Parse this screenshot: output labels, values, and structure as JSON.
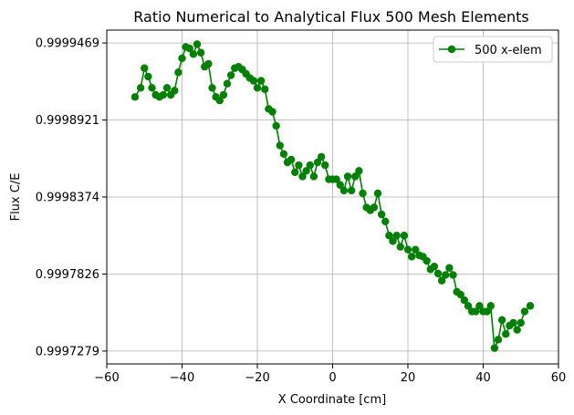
{
  "chart_data": {
    "type": "line",
    "title": "Ratio Numerical to Analytical Flux 500 Mesh Elements",
    "xlabel": "X Coordinate [cm]",
    "ylabel": "Flux C/E",
    "xlim": [
      -60,
      60
    ],
    "ylim": [
      0.99971875,
      0.99995605
    ],
    "xticks": [
      -60,
      -40,
      -20,
      0,
      20,
      40,
      60
    ],
    "xtick_labels": [
      "−60",
      "−40",
      "−20",
      "0",
      "20",
      "40",
      "60"
    ],
    "yticks": [
      0.9997279,
      0.9997826,
      0.9998374,
      0.9998921,
      0.9999469
    ],
    "ytick_labels": [
      "0.9997279",
      "0.9997826",
      "0.9998374",
      "0.9998921",
      "0.9999469"
    ],
    "grid": true,
    "legend_position": "top-right",
    "series": [
      {
        "name": "500 x-elem",
        "color": "#008000",
        "marker": "circle",
        "x": [
          -52.5,
          -51,
          -50,
          -49,
          -48,
          -47,
          -46,
          -45,
          -44,
          -43,
          -42,
          -41,
          -40,
          -39,
          -38,
          -37,
          -36,
          -35,
          -34,
          -33,
          -32,
          -31,
          -30,
          -29,
          -28,
          -27,
          -26,
          -25,
          -24,
          -23,
          -22,
          -21,
          -20,
          -19,
          -18,
          -17,
          -16,
          -15,
          -14,
          -13,
          -12,
          -11,
          -10,
          -9,
          -8,
          -7,
          -6,
          -5,
          -4,
          -3,
          -2,
          -1,
          0,
          1,
          2,
          3,
          4,
          5,
          6,
          7,
          8,
          9,
          10,
          11,
          12,
          13,
          14,
          15,
          16,
          17,
          18,
          19,
          20,
          21,
          22,
          23,
          24,
          25,
          26,
          27,
          28,
          29,
          30,
          31,
          32,
          33,
          34,
          35,
          36,
          37,
          38,
          39,
          40,
          41,
          42,
          43,
          44,
          45,
          46,
          47,
          48,
          49,
          50,
          51,
          52.5
        ],
        "y": [
          0.9999085,
          0.999915,
          0.999929,
          0.999923,
          0.999915,
          0.99991,
          0.9999085,
          0.99991,
          0.999915,
          0.99991,
          0.999913,
          0.999926,
          0.999936,
          0.999944,
          0.999943,
          0.999939,
          0.999946,
          0.99994,
          0.99993,
          0.999932,
          0.999915,
          0.9999085,
          0.999906,
          0.99991,
          0.999918,
          0.999924,
          0.999929,
          0.99993,
          0.999928,
          0.999925,
          0.999922,
          0.99992,
          0.999915,
          0.99992,
          0.999914,
          0.9999,
          0.999898,
          0.999888,
          0.999874,
          0.999868,
          0.999862,
          0.999864,
          0.999855,
          0.99986,
          0.999852,
          0.999856,
          0.99986,
          0.999852,
          0.999862,
          0.999866,
          0.99986,
          0.99985,
          0.99985,
          0.99985,
          0.999846,
          0.999842,
          0.999852,
          0.999842,
          0.999852,
          0.999856,
          0.99984,
          0.99983,
          0.999828,
          0.99983,
          0.99984,
          0.999825,
          0.99982,
          0.99981,
          0.999806,
          0.99981,
          0.999802,
          0.99981,
          0.9998,
          0.999795,
          0.9998,
          0.999796,
          0.999795,
          0.999792,
          0.999786,
          0.999788,
          0.999783,
          0.999778,
          0.999782,
          0.999787,
          0.999782,
          0.99977,
          0.999768,
          0.999764,
          0.99976,
          0.999756,
          0.999756,
          0.99976,
          0.999756,
          0.999756,
          0.99976,
          0.99973,
          0.999736,
          0.99975,
          0.99974,
          0.999746,
          0.999748,
          0.999743,
          0.999748,
          0.999756,
          0.99976
        ]
      }
    ]
  }
}
